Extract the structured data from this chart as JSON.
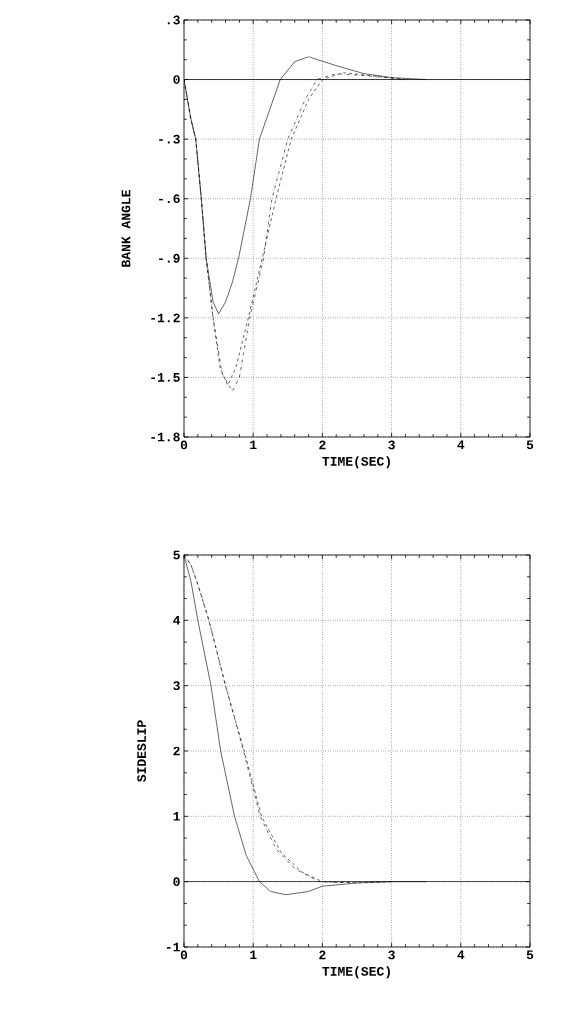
{
  "chart_data": [
    {
      "type": "line",
      "xlabel": "TIME(SEC)",
      "ylabel": "BANK ANGLE",
      "xlim": [
        0,
        5
      ],
      "ylim": [
        -1.8,
        0.3
      ],
      "xticks": [
        0,
        1,
        2,
        3,
        4,
        5
      ],
      "yticks": [
        {
          "value": -1.8,
          "label": "-1.8"
        },
        {
          "value": -1.5,
          "label": "-1.5"
        },
        {
          "value": -1.2,
          "label": "-1.2"
        },
        {
          "value": -0.9,
          "label": "-.9"
        },
        {
          "value": -0.6,
          "label": "-.6"
        },
        {
          "value": -0.3,
          "label": "-.3"
        },
        0,
        {
          "value": 0.3,
          "label": ".3"
        }
      ],
      "grid": true,
      "marker": "none",
      "ref_lines": [
        {
          "axis": "y",
          "value": 0,
          "color": "#000000",
          "line_style": "solid"
        }
      ],
      "series": [
        {
          "color": "#000000",
          "line_style": "solid",
          "x": [
            0,
            0.1,
            0.17,
            0.25,
            0.32,
            0.42,
            0.5,
            0.6,
            0.7,
            0.8,
            0.96,
            1.09,
            1.39,
            1.6,
            1.8,
            2.2,
            2.6,
            3.0,
            3.5
          ],
          "values": [
            0,
            -0.2,
            -0.3,
            -0.6,
            -0.9,
            -1.12,
            -1.18,
            -1.12,
            -1.02,
            -0.88,
            -0.6,
            -0.3,
            0,
            0.09,
            0.115,
            0.07,
            0.03,
            0.01,
            0
          ]
        },
        {
          "color": "#000000",
          "line_style": "dashed",
          "x": [
            0,
            0.1,
            0.17,
            0.25,
            0.32,
            0.42,
            0.52,
            0.63,
            0.75,
            0.93,
            1.13,
            1.33,
            1.55,
            1.8,
            2.0,
            2.3,
            2.7,
            3.2
          ],
          "values": [
            0,
            -0.2,
            -0.3,
            -0.6,
            -0.9,
            -1.2,
            -1.45,
            -1.54,
            -1.45,
            -1.2,
            -0.9,
            -0.6,
            -0.3,
            -0.1,
            0,
            0.035,
            0.02,
            0
          ]
        },
        {
          "color": "#000000",
          "line_style": "dashdotted",
          "x": [
            0,
            0.1,
            0.17,
            0.25,
            0.32,
            0.42,
            0.55,
            0.7,
            0.8,
            0.95,
            1.15,
            1.27,
            1.5,
            1.75,
            1.92,
            2.2,
            2.6,
            3.2
          ],
          "values": [
            0,
            -0.2,
            -0.3,
            -0.6,
            -0.9,
            -1.2,
            -1.48,
            -1.57,
            -1.5,
            -1.2,
            -0.9,
            -0.6,
            -0.3,
            -0.1,
            0,
            0.03,
            0.02,
            0
          ]
        }
      ]
    },
    {
      "type": "line",
      "xlabel": "TIME(SEC)",
      "ylabel": "SIDESLIP",
      "xlim": [
        0,
        5
      ],
      "ylim": [
        -1,
        5
      ],
      "xticks": [
        0,
        1,
        2,
        3,
        4,
        5
      ],
      "yticks": [
        -1,
        0,
        1,
        2,
        3,
        4,
        5
      ],
      "grid": true,
      "marker": "none",
      "ref_lines": [
        {
          "axis": "y",
          "value": 0,
          "color": "#000000",
          "line_style": "solid"
        }
      ],
      "series": [
        {
          "color": "#000000",
          "line_style": "solid",
          "x": [
            0,
            0.1,
            0.2,
            0.39,
            0.53,
            0.73,
            0.9,
            1.09,
            1.25,
            1.47,
            1.8,
            2.0,
            2.5,
            3.0,
            3.5
          ],
          "values": [
            5,
            4.6,
            4,
            3,
            2,
            1,
            0.4,
            0,
            -0.15,
            -0.2,
            -0.15,
            -0.07,
            -0.02,
            0,
            0
          ]
        },
        {
          "color": "#000000",
          "line_style": "dashed",
          "x": [
            0,
            0.1,
            0.2,
            0.36,
            0.6,
            0.87,
            1.12,
            1.4,
            1.7,
            2.0,
            2.5,
            3.0
          ],
          "values": [
            5,
            4.85,
            4.55,
            4,
            3,
            2,
            1,
            0.45,
            0.15,
            0,
            -0.02,
            0
          ]
        },
        {
          "color": "#000000",
          "line_style": "dashdotted",
          "x": [
            0,
            0.1,
            0.2,
            0.36,
            0.6,
            0.86,
            1.1,
            1.33,
            1.6,
            1.95,
            2.5
          ],
          "values": [
            5,
            4.85,
            4.55,
            4,
            3,
            2,
            1,
            0.5,
            0.2,
            0,
            -0.02
          ]
        }
      ]
    }
  ]
}
